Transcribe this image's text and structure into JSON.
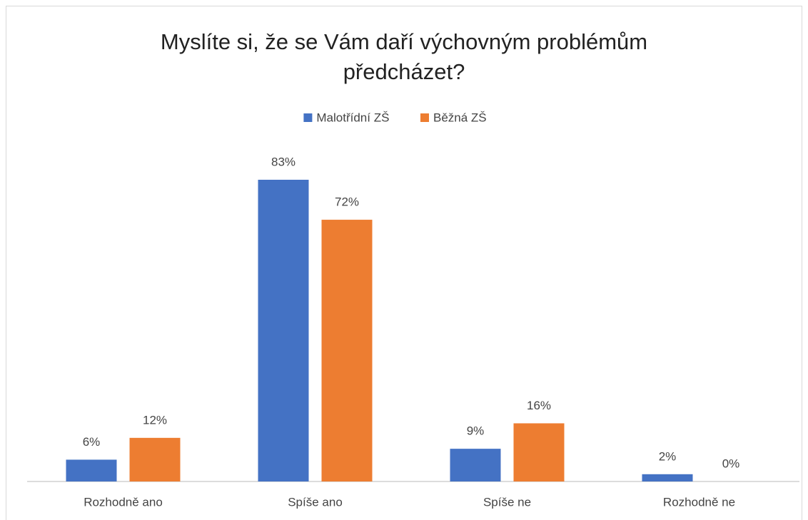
{
  "chart_data": {
    "type": "bar",
    "title": "Myslíte si, že se Vám daří výchovným problémům předcházet?",
    "categories": [
      "Rozhodně ano",
      "Spíše ano",
      "Spíše ne",
      "Rozhodně ne"
    ],
    "series": [
      {
        "name": "Malotřídní ZŠ",
        "color": "#4472c4",
        "values": [
          6,
          83,
          9,
          2
        ],
        "value_labels": [
          "6%",
          "83%",
          "9%",
          "2%"
        ]
      },
      {
        "name": "Běžná ZŠ",
        "color": "#ed7d31",
        "values": [
          12,
          72,
          16,
          0
        ],
        "value_labels": [
          "12%",
          "72%",
          "16%",
          "0%"
        ]
      }
    ],
    "legend": "top"
  }
}
